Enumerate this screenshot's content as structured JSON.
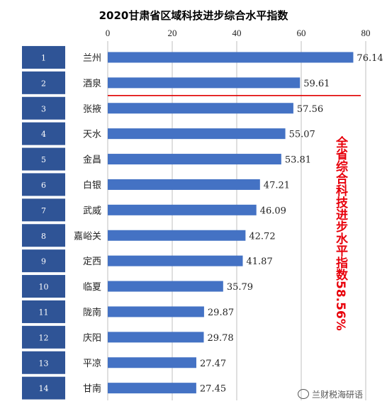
{
  "chart_data": {
    "type": "bar",
    "orientation": "horizontal",
    "title": "2020甘肃省区域科技进步综合水平指数",
    "xlim": [
      0,
      80
    ],
    "xticks": [
      0,
      20,
      40,
      60,
      80
    ],
    "xtick_position": "top",
    "ranks": [
      "1",
      "2",
      "3",
      "4",
      "5",
      "6",
      "7",
      "8",
      "9",
      "10",
      "11",
      "12",
      "13",
      "14"
    ],
    "categories": [
      "兰州",
      "酒泉",
      "张掖",
      "天水",
      "金昌",
      "白银",
      "武威",
      "嘉峪关",
      "定西",
      "临夏",
      "陇南",
      "庆阳",
      "平凉",
      "甘南"
    ],
    "values": [
      76.14,
      59.61,
      57.56,
      55.07,
      53.81,
      47.21,
      46.09,
      42.72,
      41.87,
      35.79,
      29.87,
      29.78,
      27.47,
      27.45
    ],
    "value_labels": [
      "76.14",
      "59.61",
      "57.56",
      "55.07",
      "53.81",
      "47.21",
      "46.09",
      "42.72",
      "41.87",
      "35.79",
      "29.87",
      "29.78",
      "27.47",
      "27.45"
    ],
    "grid": "vertical",
    "reference_line_after_category": 2,
    "annotation": "全省综合科技进步水平指数58.56%",
    "colors": {
      "bar": "#4472c4",
      "rank_box": "#2f5496",
      "reference_line": "#e00000",
      "annotation": "#e8000b"
    }
  },
  "watermark": "兰财税海研语"
}
